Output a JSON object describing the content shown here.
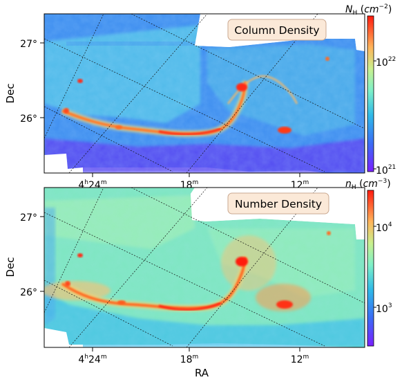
{
  "chart_data": [
    {
      "type": "heatmap",
      "title": "Column Density",
      "xlabel": "",
      "ylabel": "Dec",
      "x_ticks": [
        {
          "label": "4h24m",
          "value": "4h24m"
        },
        {
          "label": "18m",
          "value": "4h18m"
        },
        {
          "label": "12m",
          "value": "4h12m"
        }
      ],
      "y_ticks": [
        {
          "label": "27°",
          "value": 27
        },
        {
          "label": "26°",
          "value": 26
        }
      ],
      "colorbar": {
        "label": "N_H (cm^-2)",
        "scale": "log",
        "range": [
          1e+21,
          3e+22
        ],
        "ticks": [
          {
            "label": "10^21",
            "value": 1e+21
          },
          {
            "label": "10^22",
            "value": 1e+22
          }
        ],
        "colormap": "rainbow"
      },
      "grid": "on (oblique coordinate grid)"
    },
    {
      "type": "heatmap",
      "title": "Number Density",
      "xlabel": "RA",
      "ylabel": "Dec",
      "x_ticks": [
        {
          "label": "4h24m",
          "value": "4h24m"
        },
        {
          "label": "18m",
          "value": "4h18m"
        },
        {
          "label": "12m",
          "value": "4h12m"
        }
      ],
      "y_ticks": [
        {
          "label": "27°",
          "value": 27
        },
        {
          "label": "26°",
          "value": 26
        }
      ],
      "colorbar": {
        "label": "n_H (cm^-3)",
        "scale": "log",
        "range": [
          400,
          25000
        ],
        "ticks": [
          {
            "label": "10^3",
            "value": 1000
          },
          {
            "label": "10^4",
            "value": 10000
          }
        ],
        "colormap": "rainbow"
      },
      "grid": "on (oblique coordinate grid)"
    }
  ],
  "labels": {
    "top_title": "Column Density",
    "bottom_title": "Number Density",
    "top_cbar_sym": "N",
    "top_cbar_sub": "H",
    "top_cbar_unit_base": "cm",
    "top_cbar_unit_exp": "−2",
    "bottom_cbar_sym": "n",
    "bottom_cbar_sub": "H",
    "bottom_cbar_unit_base": "cm",
    "bottom_cbar_unit_exp": "−3",
    "ylabel": "Dec",
    "xlabel": "RA",
    "ytick_27": "27°",
    "ytick_26": "26°",
    "xtick_24_base": "4",
    "xtick_24_h": "h",
    "xtick_24_num": "24",
    "xtick_18_num": "18",
    "xtick_12_num": "12",
    "xtick_m": "m",
    "top_cb_hi_base": "10",
    "top_cb_hi_exp": "22",
    "top_cb_lo_base": "10",
    "top_cb_lo_exp": "21",
    "bot_cb_hi_base": "10",
    "bot_cb_hi_exp": "4",
    "bot_cb_lo_base": "10",
    "bot_cb_lo_exp": "3"
  }
}
